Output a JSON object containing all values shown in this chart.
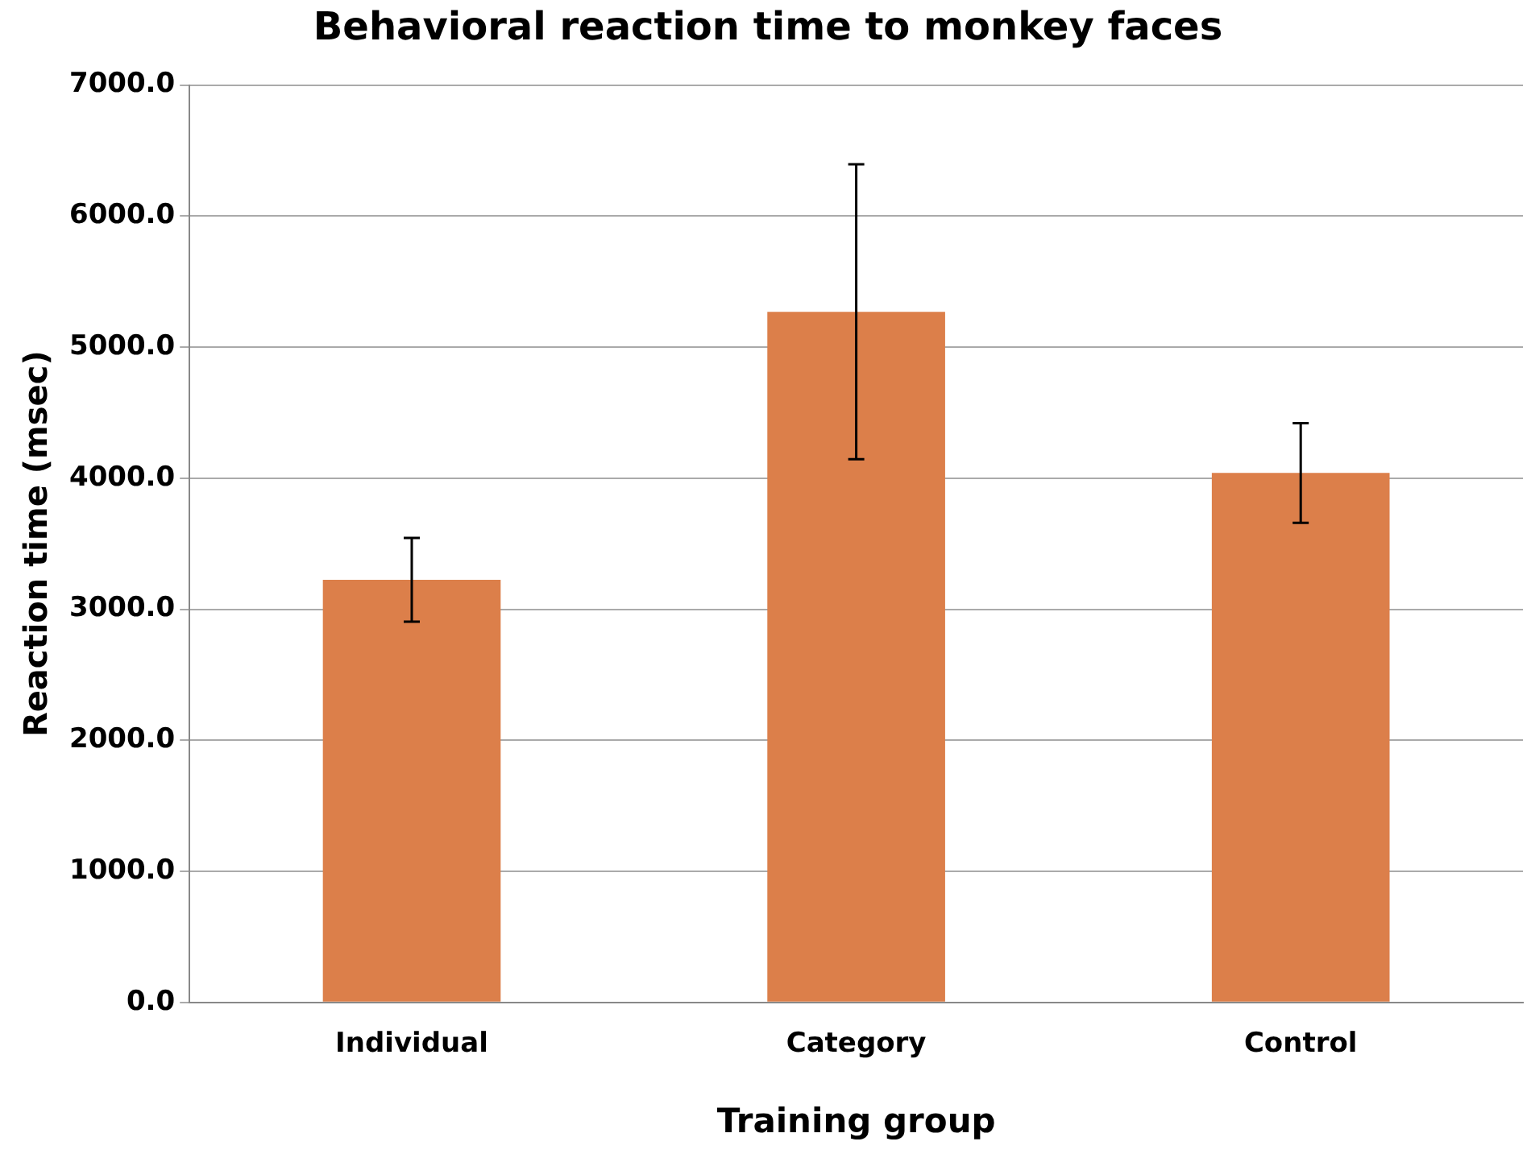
{
  "chart_data": {
    "type": "bar",
    "title": "Behavioral reaction time to monkey faces",
    "xlabel": "Training group",
    "ylabel": "Reaction time (msec)",
    "categories": [
      "Individual",
      "Category",
      "Control"
    ],
    "values": [
      3225,
      5270,
      4040
    ],
    "errors": [
      320,
      1125,
      380
    ],
    "color": "#dc7f4a",
    "ylim": [
      0,
      7000
    ],
    "yticks": [
      {
        "value": 0,
        "label": "0.0"
      },
      {
        "value": 1000,
        "label": "1000.0"
      },
      {
        "value": 2000,
        "label": "2000.0"
      },
      {
        "value": 3000,
        "label": "3000.0"
      },
      {
        "value": 4000,
        "label": "4000.0"
      },
      {
        "value": 5000,
        "label": "5000.0"
      },
      {
        "value": 6000,
        "label": "6000.0"
      },
      {
        "value": 7000,
        "label": "7000.0"
      }
    ],
    "grid": "y",
    "legend": false
  }
}
